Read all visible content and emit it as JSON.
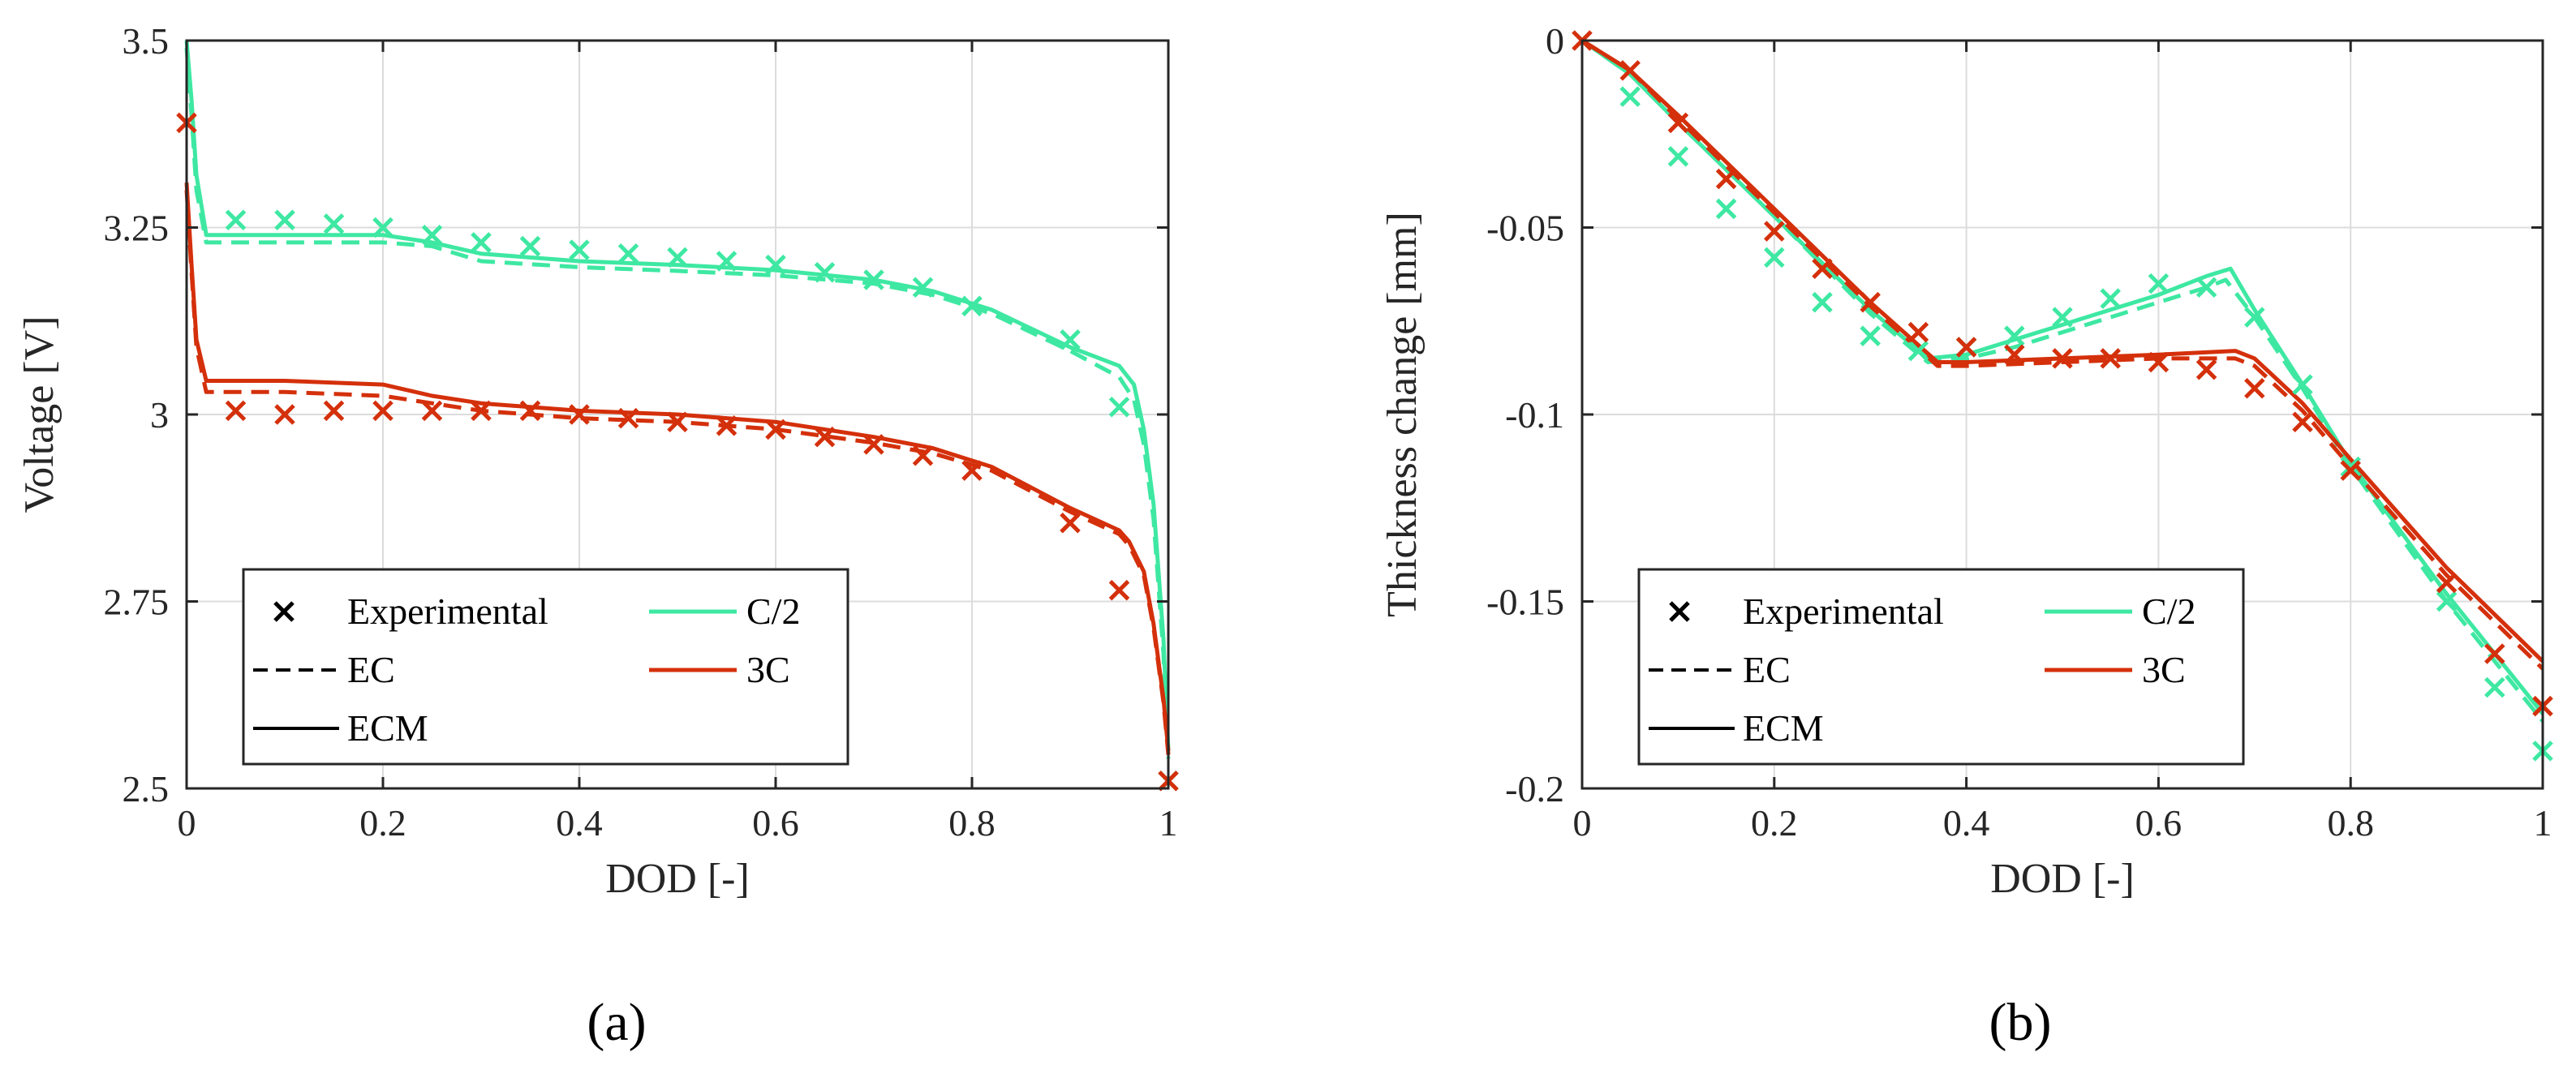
{
  "colors": {
    "c2": "#3ee8a2",
    "c3": "#d4300b",
    "axis": "#262626",
    "grid": "#dcdcdc"
  },
  "legend": {
    "experimental": "Experimental",
    "ec": "EC",
    "ecm": "ECM",
    "c2": "C/2",
    "c3": "3C"
  },
  "chart_data": [
    {
      "type": "line",
      "caption": "(a)",
      "xlabel": "DOD [-]",
      "ylabel": "Voltage [V]",
      "xlim": [
        0,
        1
      ],
      "ylim": [
        2.5,
        3.5
      ],
      "xticks": [
        0,
        0.2,
        0.4,
        0.6,
        0.8,
        1
      ],
      "xtick_labels": [
        "0",
        "0.2",
        "0.4",
        "0.6",
        "0.8",
        "1"
      ],
      "yticks": [
        2.5,
        2.75,
        3,
        3.25,
        3.5
      ],
      "ytick_labels": [
        "2.5",
        "2.75",
        "3",
        "3.25",
        "3.5"
      ],
      "grid": true,
      "legend_position": "bottom-left",
      "series": [
        {
          "name": "C/2 ECM",
          "rate": "C/2",
          "model": "ECM",
          "x": [
            0,
            0.005,
            0.01,
            0.02,
            0.05,
            0.1,
            0.2,
            0.25,
            0.3,
            0.4,
            0.5,
            0.6,
            0.7,
            0.76,
            0.82,
            0.9,
            0.95,
            0.965,
            0.975,
            0.985,
            0.995,
            1.0
          ],
          "y": [
            3.5,
            3.42,
            3.32,
            3.24,
            3.24,
            3.24,
            3.24,
            3.23,
            3.215,
            3.205,
            3.2,
            3.193,
            3.18,
            3.165,
            3.14,
            3.09,
            3.065,
            3.04,
            2.98,
            2.88,
            2.7,
            2.55
          ]
        },
        {
          "name": "C/2 EC",
          "rate": "C/2",
          "model": "EC",
          "x": [
            0,
            0.005,
            0.01,
            0.02,
            0.05,
            0.1,
            0.2,
            0.25,
            0.3,
            0.4,
            0.5,
            0.6,
            0.7,
            0.76,
            0.82,
            0.9,
            0.95,
            0.965,
            0.975,
            0.985,
            0.995,
            1.0
          ],
          "y": [
            3.49,
            3.4,
            3.3,
            3.23,
            3.23,
            3.23,
            3.23,
            3.225,
            3.205,
            3.197,
            3.192,
            3.186,
            3.175,
            3.16,
            3.135,
            3.085,
            3.05,
            3.02,
            2.96,
            2.86,
            2.68,
            2.54
          ]
        },
        {
          "name": "3C ECM",
          "rate": "3C",
          "model": "ECM",
          "x": [
            0,
            0.005,
            0.01,
            0.02,
            0.05,
            0.1,
            0.2,
            0.25,
            0.3,
            0.4,
            0.5,
            0.6,
            0.7,
            0.76,
            0.82,
            0.9,
            0.95,
            0.96,
            0.975,
            0.985,
            0.995,
            1.0
          ],
          "y": [
            3.31,
            3.2,
            3.1,
            3.045,
            3.045,
            3.045,
            3.04,
            3.025,
            3.015,
            3.005,
            3.0,
            2.99,
            2.97,
            2.955,
            2.93,
            2.875,
            2.845,
            2.83,
            2.79,
            2.72,
            2.62,
            2.55
          ]
        },
        {
          "name": "3C EC",
          "rate": "3C",
          "model": "EC",
          "x": [
            0,
            0.005,
            0.01,
            0.02,
            0.05,
            0.1,
            0.2,
            0.25,
            0.3,
            0.4,
            0.5,
            0.6,
            0.7,
            0.76,
            0.82,
            0.9,
            0.95,
            0.96,
            0.975,
            0.985,
            0.995,
            1.0
          ],
          "y": [
            3.3,
            3.19,
            3.09,
            3.03,
            3.03,
            3.03,
            3.025,
            3.015,
            3.005,
            2.995,
            2.99,
            2.98,
            2.962,
            2.948,
            2.925,
            2.87,
            2.84,
            2.825,
            2.785,
            2.715,
            2.615,
            2.545
          ]
        },
        {
          "name": "C/2 Experimental",
          "rate": "C/2",
          "model": "Experimental",
          "x": [
            0.05,
            0.1,
            0.15,
            0.2,
            0.25,
            0.3,
            0.35,
            0.4,
            0.45,
            0.5,
            0.55,
            0.6,
            0.65,
            0.7,
            0.75,
            0.8,
            0.9,
            0.95,
            1.0
          ],
          "y": [
            3.26,
            3.26,
            3.255,
            3.25,
            3.24,
            3.23,
            3.225,
            3.22,
            3.215,
            3.21,
            3.205,
            3.2,
            3.19,
            3.18,
            3.17,
            3.145,
            3.1,
            3.01,
            2.51
          ]
        },
        {
          "name": "3C Experimental",
          "rate": "3C",
          "model": "Experimental",
          "x": [
            0,
            0.05,
            0.1,
            0.15,
            0.2,
            0.25,
            0.3,
            0.35,
            0.4,
            0.45,
            0.5,
            0.55,
            0.6,
            0.65,
            0.7,
            0.75,
            0.8,
            0.9,
            0.95,
            1.0
          ],
          "y": [
            3.39,
            3.005,
            3.0,
            3.005,
            3.005,
            3.005,
            3.005,
            3.005,
            3.0,
            2.995,
            2.99,
            2.985,
            2.98,
            2.97,
            2.96,
            2.945,
            2.925,
            2.855,
            2.765,
            2.51
          ]
        }
      ]
    },
    {
      "type": "line",
      "caption": "(b)",
      "xlabel": "DOD [-]",
      "ylabel": "Thickness change [mm]",
      "xlim": [
        0,
        1
      ],
      "ylim": [
        -0.2,
        0
      ],
      "xticks": [
        0,
        0.2,
        0.4,
        0.6,
        0.8,
        1
      ],
      "xtick_labels": [
        "0",
        "0.2",
        "0.4",
        "0.6",
        "0.8",
        "1"
      ],
      "yticks": [
        -0.2,
        -0.15,
        -0.1,
        -0.05,
        0
      ],
      "ytick_labels": [
        "-0.2",
        "-0.15",
        "-0.1",
        "-0.05",
        "0"
      ],
      "grid": true,
      "legend_position": "bottom-left",
      "series": [
        {
          "name": "C/2 ECM",
          "rate": "C/2",
          "model": "ECM",
          "x": [
            0,
            0.05,
            0.1,
            0.2,
            0.3,
            0.36,
            0.4,
            0.45,
            0.5,
            0.55,
            0.6,
            0.65,
            0.675,
            0.7,
            0.75,
            0.8,
            0.9,
            1.0
          ],
          "y": [
            0,
            -0.009,
            -0.022,
            -0.047,
            -0.072,
            -0.085,
            -0.084,
            -0.08,
            -0.076,
            -0.072,
            -0.068,
            -0.063,
            -0.061,
            -0.072,
            -0.092,
            -0.113,
            -0.148,
            -0.18
          ]
        },
        {
          "name": "C/2 EC",
          "rate": "C/2",
          "model": "EC",
          "x": [
            0,
            0.05,
            0.1,
            0.2,
            0.3,
            0.36,
            0.4,
            0.45,
            0.5,
            0.55,
            0.6,
            0.65,
            0.67,
            0.7,
            0.75,
            0.8,
            0.9,
            1.0
          ],
          "y": [
            0,
            -0.009,
            -0.022,
            -0.047,
            -0.073,
            -0.086,
            -0.085,
            -0.082,
            -0.078,
            -0.074,
            -0.07,
            -0.066,
            -0.064,
            -0.074,
            -0.093,
            -0.114,
            -0.15,
            -0.182
          ]
        },
        {
          "name": "3C ECM",
          "rate": "3C",
          "model": "ECM",
          "x": [
            0,
            0.05,
            0.1,
            0.2,
            0.3,
            0.37,
            0.4,
            0.5,
            0.6,
            0.68,
            0.7,
            0.75,
            0.8,
            0.9,
            1.0
          ],
          "y": [
            0,
            -0.008,
            -0.02,
            -0.045,
            -0.07,
            -0.086,
            -0.086,
            -0.085,
            -0.084,
            -0.083,
            -0.085,
            -0.097,
            -0.112,
            -0.141,
            -0.166
          ]
        },
        {
          "name": "3C EC",
          "rate": "3C",
          "model": "EC",
          "x": [
            0,
            0.05,
            0.1,
            0.2,
            0.3,
            0.37,
            0.4,
            0.5,
            0.6,
            0.68,
            0.7,
            0.75,
            0.8,
            0.9,
            1.0
          ],
          "y": [
            0,
            -0.008,
            -0.021,
            -0.046,
            -0.071,
            -0.087,
            -0.087,
            -0.086,
            -0.085,
            -0.085,
            -0.087,
            -0.099,
            -0.114,
            -0.143,
            -0.168
          ]
        },
        {
          "name": "C/2 Experimental",
          "rate": "C/2",
          "model": "Experimental",
          "x": [
            0.05,
            0.1,
            0.15,
            0.2,
            0.25,
            0.3,
            0.35,
            0.4,
            0.45,
            0.5,
            0.55,
            0.6,
            0.65,
            0.7,
            0.75,
            0.8,
            0.9,
            0.95,
            1.0
          ],
          "y": [
            -0.015,
            -0.031,
            -0.045,
            -0.058,
            -0.07,
            -0.079,
            -0.083,
            -0.082,
            -0.079,
            -0.074,
            -0.069,
            -0.065,
            -0.066,
            -0.074,
            -0.092,
            -0.114,
            -0.15,
            -0.173,
            -0.19
          ]
        },
        {
          "name": "3C Experimental",
          "rate": "3C",
          "model": "Experimental",
          "x": [
            0,
            0.05,
            0.1,
            0.15,
            0.2,
            0.25,
            0.3,
            0.35,
            0.4,
            0.45,
            0.5,
            0.55,
            0.6,
            0.65,
            0.7,
            0.75,
            0.8,
            0.9,
            0.95,
            1.0
          ],
          "y": [
            0,
            -0.008,
            -0.022,
            -0.037,
            -0.051,
            -0.061,
            -0.07,
            -0.078,
            -0.082,
            -0.084,
            -0.085,
            -0.085,
            -0.086,
            -0.088,
            -0.093,
            -0.102,
            -0.115,
            -0.145,
            -0.164,
            -0.178
          ]
        }
      ]
    }
  ]
}
